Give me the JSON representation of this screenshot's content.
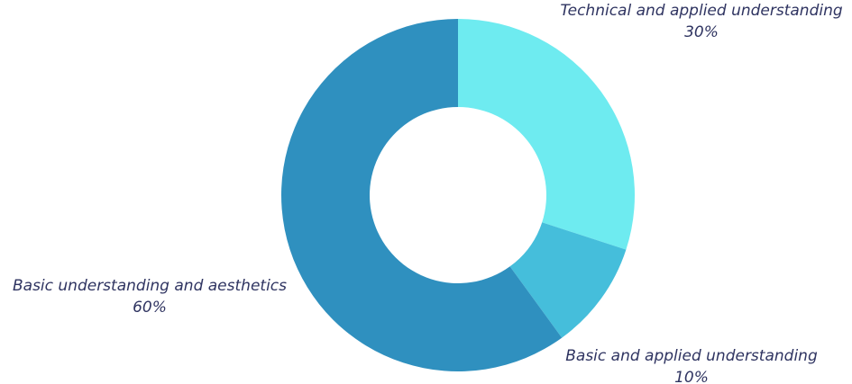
{
  "chart_data": {
    "type": "donut",
    "categories": [
      "Technical and applied understanding",
      "Basic and applied understanding",
      "Basic understanding and aesthetics"
    ],
    "values": [
      30,
      10,
      60
    ],
    "value_labels": [
      "30%",
      "10%",
      "60%"
    ],
    "colors": [
      "#6eebf0",
      "#45bedb",
      "#2f90bf"
    ]
  }
}
